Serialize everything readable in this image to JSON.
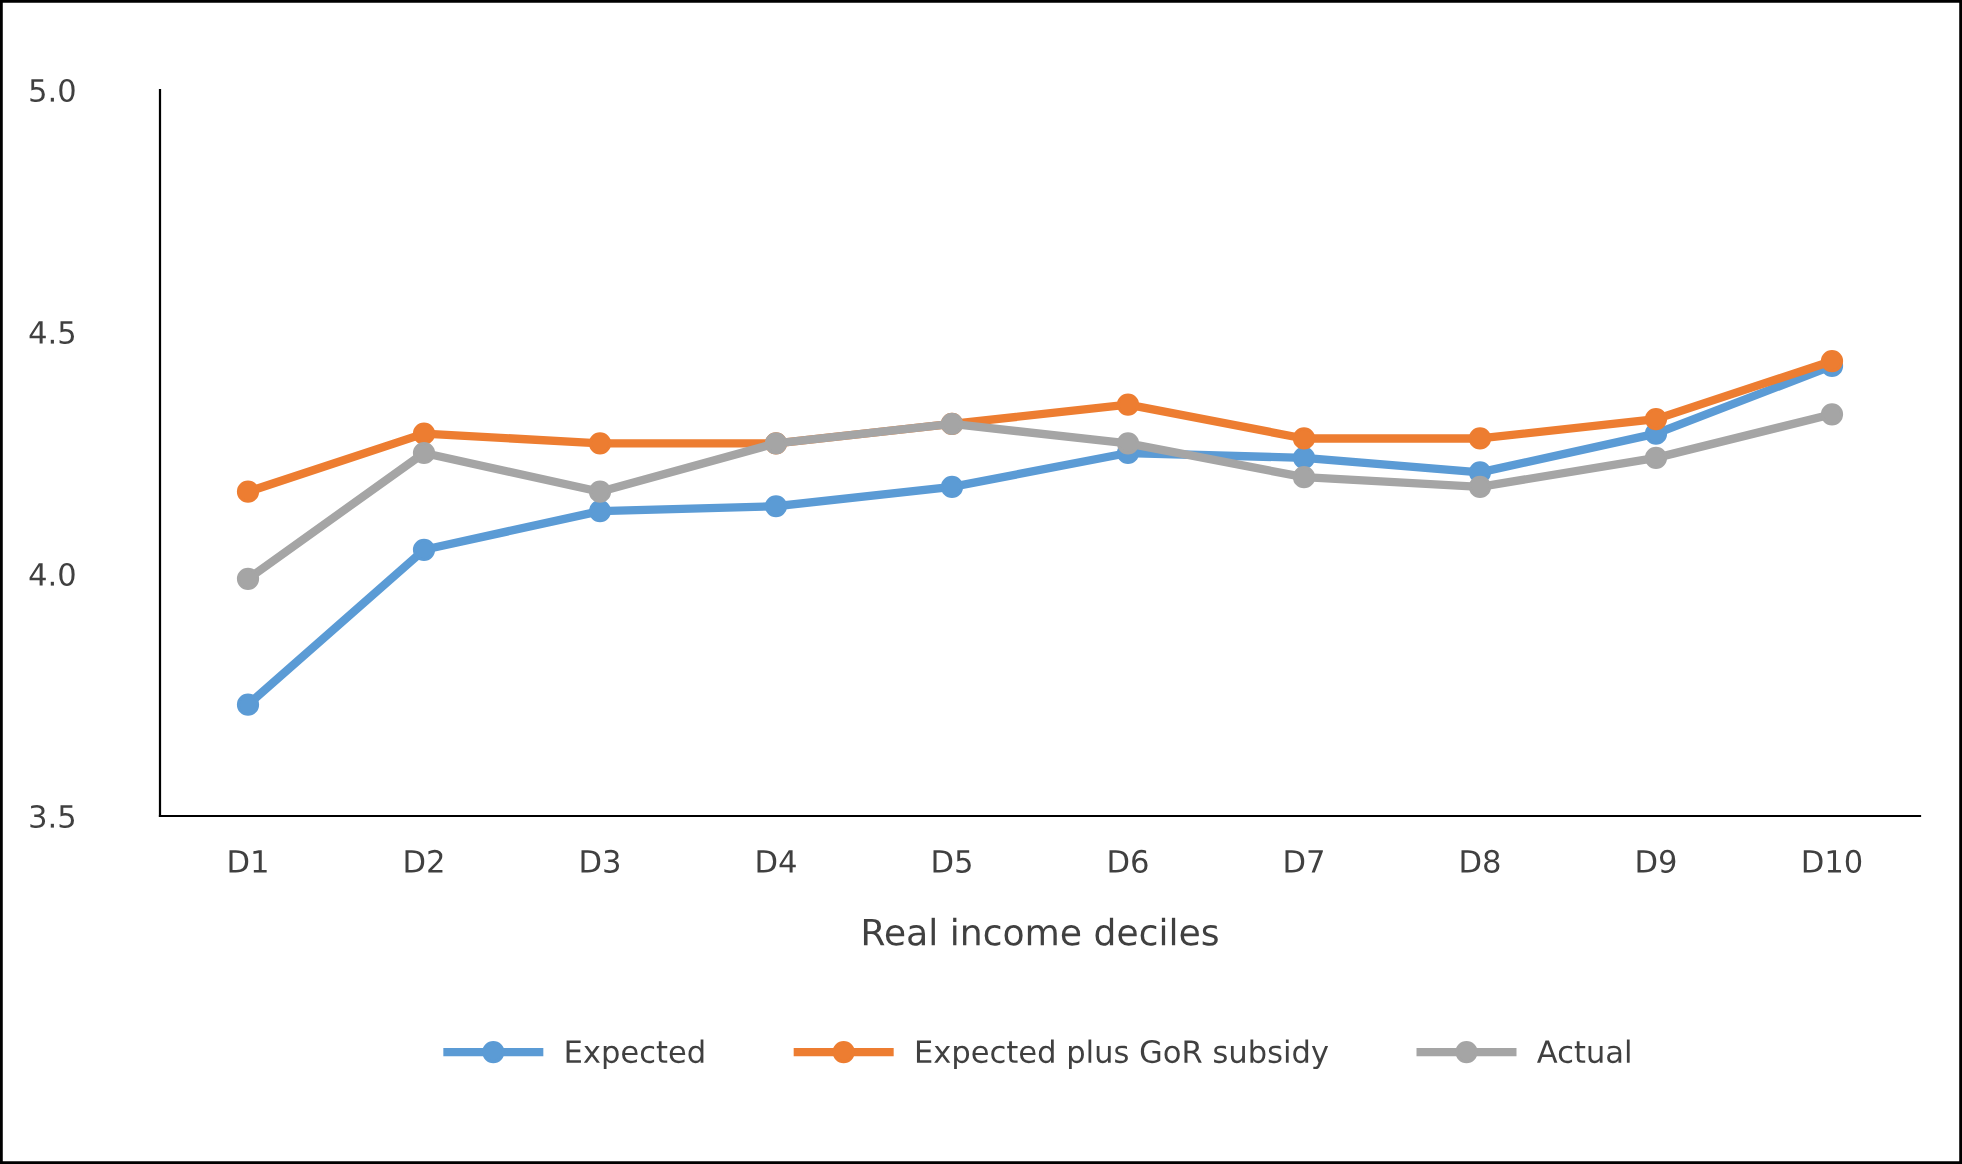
{
  "chart_data": {
    "type": "line",
    "xlabel": "Real income deciles",
    "categories": [
      "D1",
      "D2",
      "D3",
      "D4",
      "D5",
      "D6",
      "D7",
      "D8",
      "D9",
      "D10"
    ],
    "series": [
      {
        "name": "Expected",
        "color": "#5b9bd5",
        "values": [
          3.73,
          4.05,
          4.13,
          4.14,
          4.18,
          4.25,
          4.24,
          4.21,
          4.29,
          4.43
        ]
      },
      {
        "name": "Expected plus GoR subsidy",
        "color": "#ed7d31",
        "values": [
          4.17,
          4.29,
          4.27,
          4.27,
          4.31,
          4.35,
          4.28,
          4.28,
          4.32,
          4.44
        ]
      },
      {
        "name": "Actual",
        "color": "#a5a5a5",
        "values": [
          3.99,
          4.25,
          4.17,
          4.27,
          4.31,
          4.27,
          4.2,
          4.18,
          4.24,
          4.33
        ]
      }
    ],
    "ylim": [
      3.5,
      5.0
    ],
    "yticks": [
      {
        "value": 3.5,
        "label": "3.5"
      },
      {
        "value": 4.0,
        "label": "4.0"
      },
      {
        "value": 4.5,
        "label": "4.5"
      },
      {
        "value": 5.0,
        "label": "5.0"
      }
    ],
    "grid": false,
    "legend": "bottom",
    "marker": "circle",
    "line_style": "solid"
  }
}
